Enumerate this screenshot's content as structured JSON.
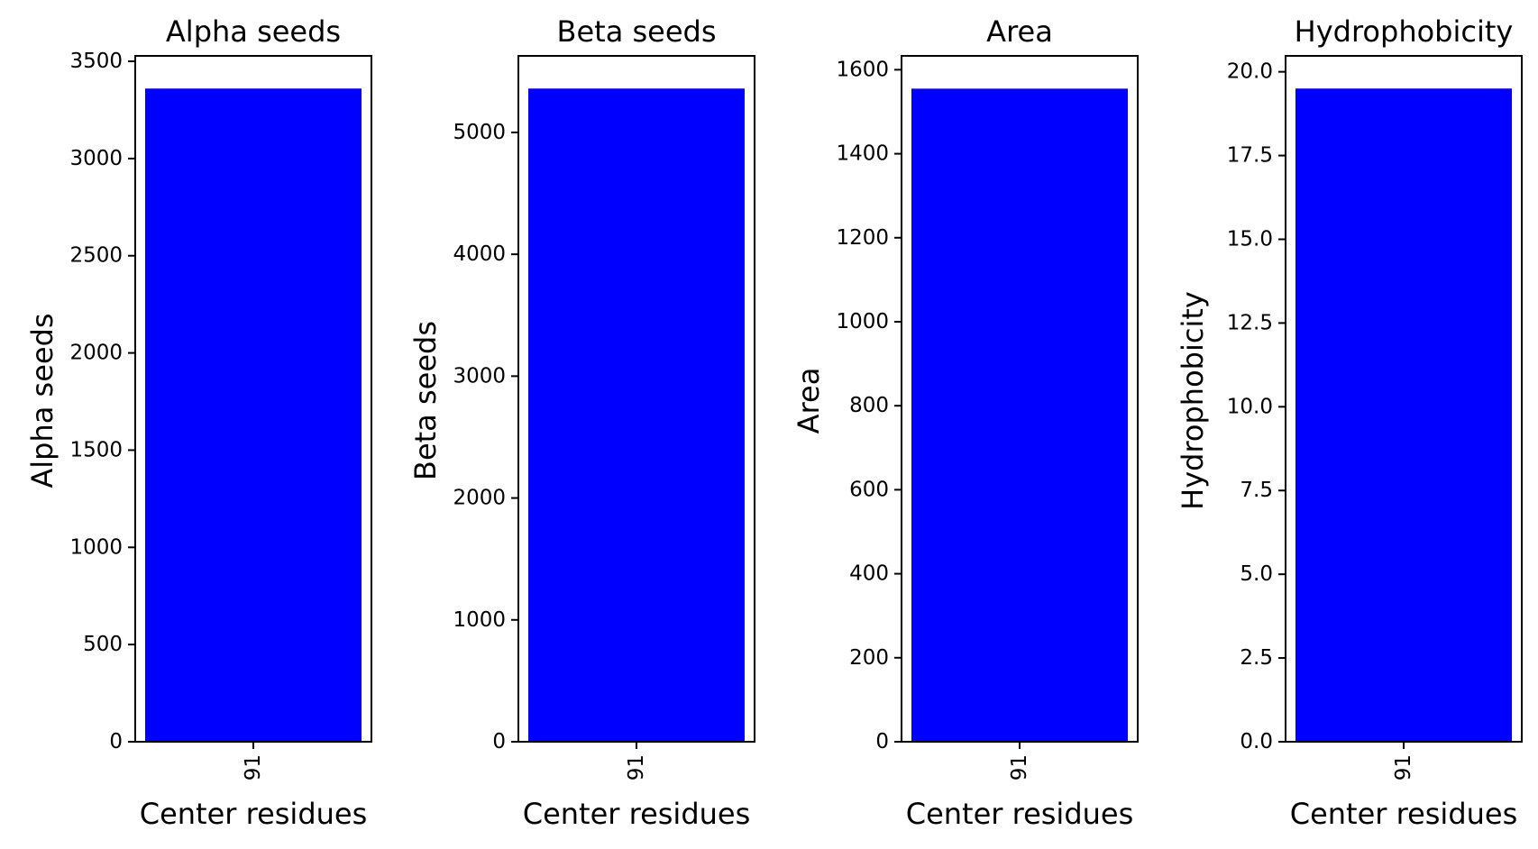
{
  "colors": {
    "bar": "#0000ff",
    "axis": "#000000",
    "background": "#ffffff"
  },
  "chart_data": [
    {
      "type": "bar",
      "title": "Alpha seeds",
      "xlabel": "Center residues",
      "ylabel": "Alpha seeds",
      "categories": [
        "91"
      ],
      "values": [
        3360
      ],
      "ylim": [
        0,
        3528
      ],
      "yticks": [
        0,
        500,
        1000,
        1500,
        2000,
        2500,
        3000,
        3500
      ],
      "ytick_labels": [
        "0",
        "500",
        "1000",
        "1500",
        "2000",
        "2500",
        "3000",
        "3500"
      ],
      "grid": false,
      "legend": "none"
    },
    {
      "type": "bar",
      "title": "Beta seeds",
      "xlabel": "Center residues",
      "ylabel": "Beta seeds",
      "categories": [
        "91"
      ],
      "values": [
        5360
      ],
      "ylim": [
        0,
        5628
      ],
      "yticks": [
        0,
        1000,
        2000,
        3000,
        4000,
        5000
      ],
      "ytick_labels": [
        "0",
        "1000",
        "2000",
        "3000",
        "4000",
        "5000"
      ],
      "grid": false,
      "legend": "none"
    },
    {
      "type": "bar",
      "title": "Area",
      "xlabel": "Center residues",
      "ylabel": "Area",
      "categories": [
        "91"
      ],
      "values": [
        1555
      ],
      "ylim": [
        0,
        1633
      ],
      "yticks": [
        0,
        200,
        400,
        600,
        800,
        1000,
        1200,
        1400,
        1600
      ],
      "ytick_labels": [
        "0",
        "200",
        "400",
        "600",
        "800",
        "1000",
        "1200",
        "1400",
        "1600"
      ],
      "grid": false,
      "legend": "none"
    },
    {
      "type": "bar",
      "title": "Hydrophobicity",
      "xlabel": "Center residues",
      "ylabel": "Hydrophobicity",
      "categories": [
        "91"
      ],
      "values": [
        19.5
      ],
      "ylim": [
        0,
        20.475
      ],
      "yticks": [
        0,
        2.5,
        5,
        7.5,
        10,
        12.5,
        15,
        17.5,
        20
      ],
      "ytick_labels": [
        "0.0",
        "2.5",
        "5.0",
        "7.5",
        "10.0",
        "12.5",
        "15.0",
        "17.5",
        "20.0"
      ],
      "grid": false,
      "legend": "none"
    }
  ]
}
